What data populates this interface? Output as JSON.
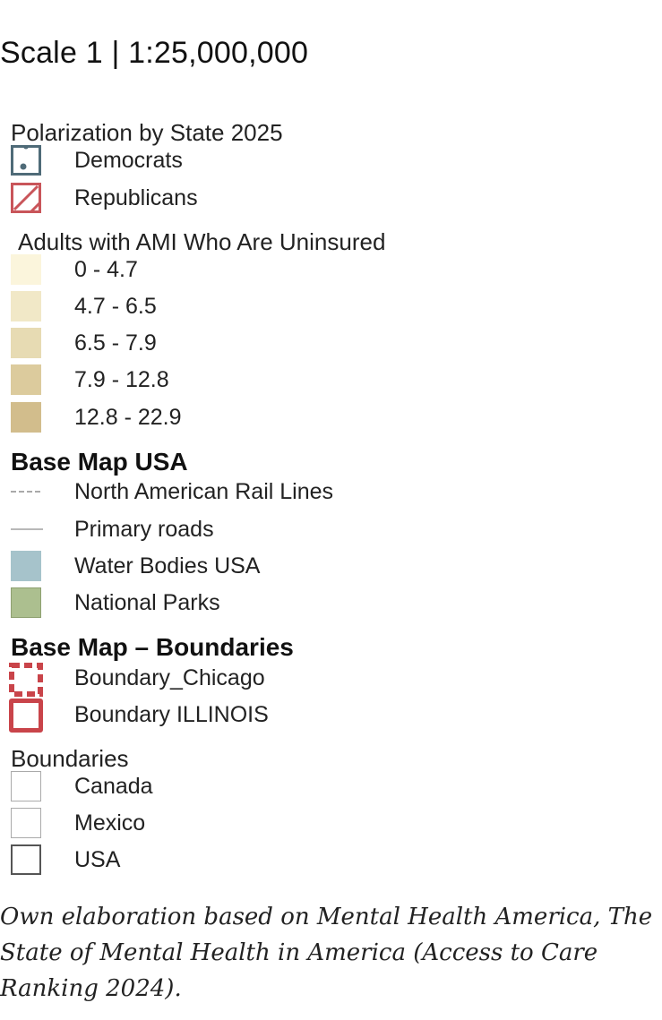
{
  "scale": "Scale 1 | 1:25,000,000",
  "polarization": {
    "title": "Polarization by State 2025",
    "items": [
      {
        "label": "Democrats",
        "color": "#4f6b78",
        "icon": "dot-pattern-icon"
      },
      {
        "label": "Republicans",
        "color": "#c9555a",
        "icon": "hatch-pattern-icon"
      }
    ]
  },
  "uninsured": {
    "title": "Adults with AMI Who Are Uninsured",
    "items": [
      {
        "label": "0 - 4.7",
        "color": "#fbf5dc"
      },
      {
        "label": "4.7 - 6.5",
        "color": "#f1e8c7"
      },
      {
        "label": "6.5 - 7.9",
        "color": "#e7dbb3"
      },
      {
        "label": "7.9 - 12.8",
        "color": "#dccb9d"
      },
      {
        "label": "12.8 - 22.9",
        "color": "#d2bd8c"
      }
    ]
  },
  "basemap": {
    "title": "Base Map USA",
    "items": [
      {
        "label": "North American Rail Lines",
        "icon": "dashed-line-icon",
        "color": "#aaaaaa"
      },
      {
        "label": "Primary roads",
        "icon": "solid-line-icon",
        "color": "#b8b8b8"
      },
      {
        "label": "Water Bodies USA",
        "color": "#a6c3cb"
      },
      {
        "label": "National Parks",
        "color": "#acbf8f"
      }
    ]
  },
  "boundaries_base": {
    "title": "Base Map – Boundaries",
    "items": [
      {
        "label": "Boundary_Chicago",
        "color": "#c9444a"
      },
      {
        "label": "Boundary ILLINOIS",
        "color": "#c9444a"
      }
    ]
  },
  "boundaries": {
    "title": "Boundaries",
    "items": [
      {
        "label": "Canada",
        "color": "#aaaaaa"
      },
      {
        "label": "Mexico",
        "color": "#aaaaaa"
      },
      {
        "label": "USA",
        "color": "#555555"
      }
    ]
  },
  "credit": "Own elaboration based on Mental Health America, The State of Mental Health in America (Access to Care Ranking 2024)."
}
